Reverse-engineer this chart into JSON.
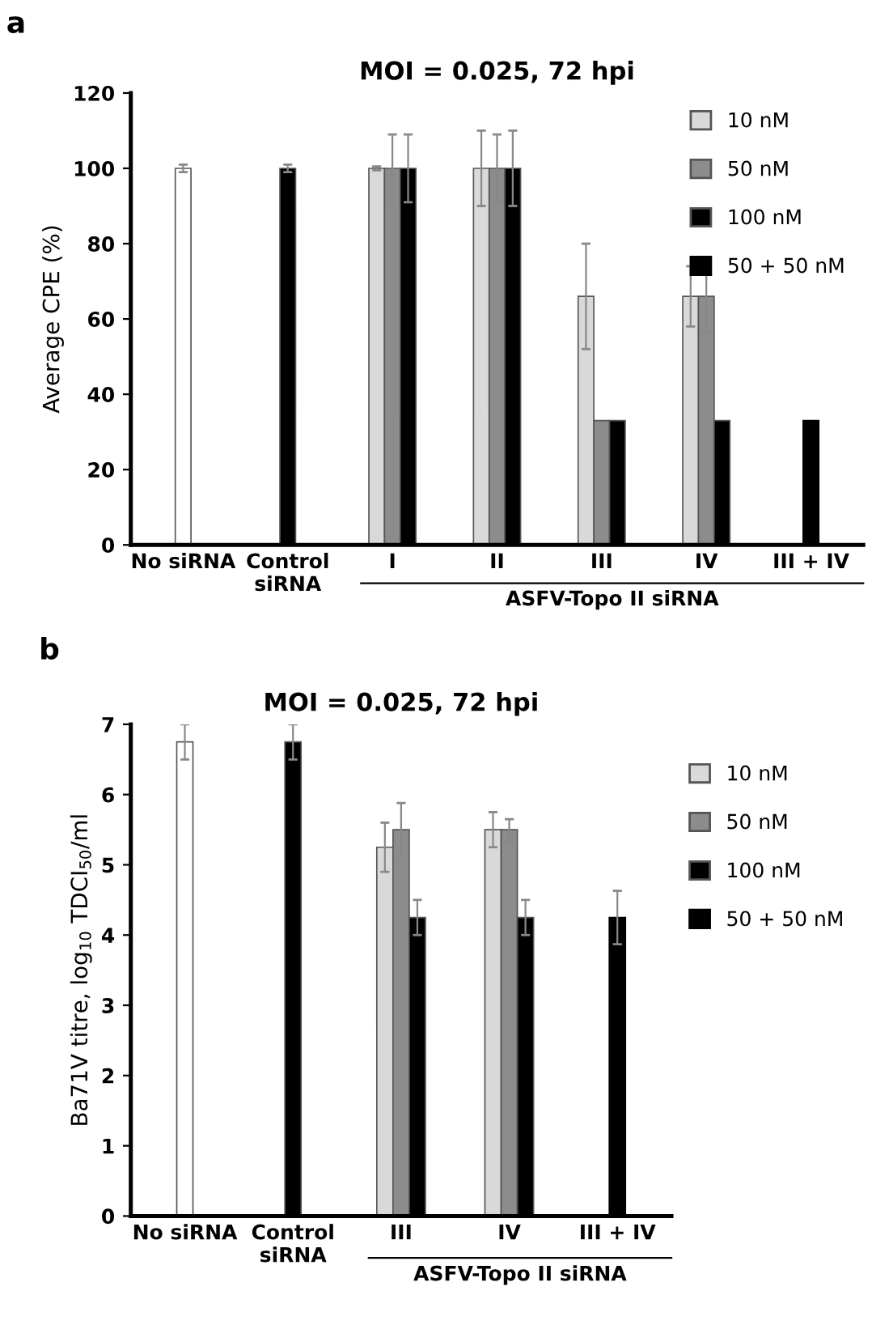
{
  "chart_data": [
    {
      "type": "bar",
      "title": "MOI = 0.025, 72 hpi",
      "ylabel": "Average CPE (%)",
      "categories": [
        "No siRNA",
        "Control\nsiRNA",
        "I",
        "II",
        "III",
        "IV",
        "III + IV"
      ],
      "series": [
        {
          "color": "#ffffff",
          "values": [
            100,
            null,
            null,
            null,
            null,
            null,
            null
          ],
          "errors": [
            1,
            null,
            null,
            null,
            null,
            null,
            null
          ]
        },
        {
          "name": "10 nM",
          "color": "#d9d9d9",
          "values": [
            null,
            null,
            100,
            100,
            66,
            66,
            null
          ],
          "errors": [
            null,
            null,
            0.5,
            10,
            14,
            8,
            null
          ]
        },
        {
          "name": "50 nM",
          "color": "#8c8c8c",
          "values": [
            null,
            null,
            100,
            100,
            33,
            66,
            null
          ],
          "errors": [
            null,
            null,
            9,
            9,
            null,
            9.5,
            null
          ]
        },
        {
          "name": "100 nM",
          "color": "#000000",
          "values": [
            null,
            100,
            100,
            100,
            33,
            33,
            null
          ],
          "errors": [
            null,
            1,
            9,
            10,
            null,
            null,
            null
          ]
        },
        {
          "name": "50 + 50 nM",
          "color": "#000000",
          "values": [
            null,
            null,
            null,
            null,
            null,
            null,
            33
          ]
        }
      ],
      "ylim": [
        0,
        120
      ],
      "yticks": [
        0,
        20,
        40,
        60,
        80,
        100,
        120
      ],
      "grid": false,
      "legend": "top right",
      "annotations": [
        "a",
        "ASFV-Topo II siRNA"
      ]
    },
    {
      "type": "bar",
      "title": "MOI = 0.025, 72 hpi",
      "ylabel": "Ba71V titre, log$_{10}$ TDCI$_{50}$/ml",
      "categories": [
        "No siRNA",
        "Control\nsiRNA",
        "III",
        "IV",
        "III + IV"
      ],
      "series": [
        {
          "color": "#ffffff",
          "values": [
            6.75,
            null,
            null,
            null,
            null
          ],
          "errors": [
            0.25,
            null,
            null,
            null,
            null
          ]
        },
        {
          "name": "10 nM",
          "color": "#d9d9d9",
          "values": [
            null,
            null,
            5.25,
            5.5,
            null
          ],
          "errors": [
            null,
            null,
            0.35,
            0.25,
            null
          ]
        },
        {
          "name": "50 nM",
          "color": "#8c8c8c",
          "values": [
            null,
            null,
            5.5,
            5.5,
            null
          ],
          "errors": [
            null,
            null,
            0.38,
            0.15,
            null
          ]
        },
        {
          "name": "100 nM",
          "color": "#000000",
          "values": [
            null,
            6.75,
            4.25,
            4.25,
            null
          ],
          "errors": [
            null,
            0.25,
            0.25,
            0.25,
            null
          ]
        },
        {
          "name": "50 + 50 nM",
          "color": "#000000",
          "values": [
            null,
            null,
            null,
            null,
            4.25
          ],
          "errors": [
            null,
            null,
            null,
            null,
            0.38
          ]
        }
      ],
      "ylim": [
        0,
        7
      ],
      "yticks": [
        0,
        1,
        2,
        3,
        4,
        5,
        6,
        7
      ],
      "grid": false,
      "legend": "right",
      "annotations": [
        "b",
        "ASFV-Topo II siRNA"
      ]
    }
  ]
}
